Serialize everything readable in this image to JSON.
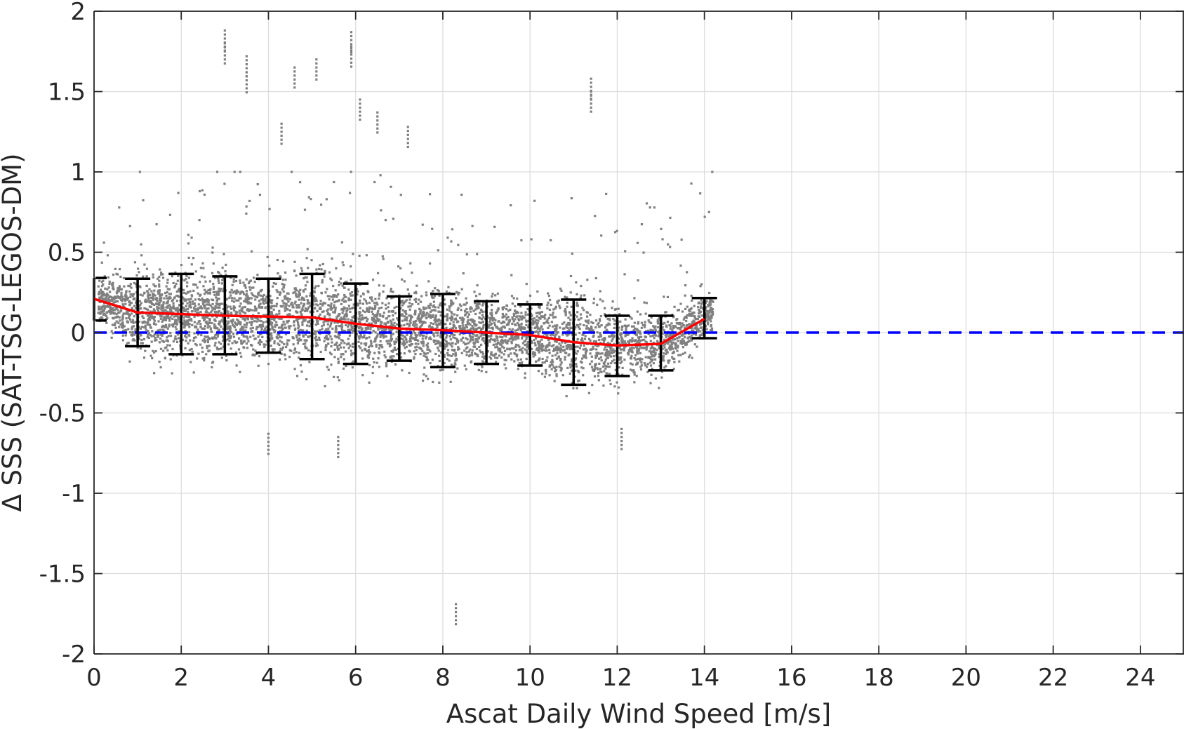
{
  "chart_data": {
    "type": "scatter",
    "title": "",
    "xlabel": "Ascat Daily Wind Speed [m/s]",
    "ylabel": "Δ SSS (SAT-TSG-LEGOS-DM)",
    "xlim": [
      0,
      25
    ],
    "ylim": [
      -2,
      2
    ],
    "grid": true,
    "x_ticks": [
      0,
      2,
      4,
      6,
      8,
      10,
      12,
      14,
      16,
      18,
      20,
      22,
      24
    ],
    "y_ticks": [
      -2,
      -1.5,
      -1,
      -0.5,
      0,
      0.5,
      1,
      1.5,
      2
    ],
    "x_tick_labels": [
      "0",
      "2",
      "4",
      "6",
      "8",
      "10",
      "12",
      "14",
      "16",
      "18",
      "20",
      "22",
      "24"
    ],
    "y_tick_labels": [
      "-2",
      "-1.5",
      "-1",
      "-0.5",
      "0",
      "0.5",
      "1",
      "1.5",
      "2"
    ],
    "scatter": {
      "color": "#808080",
      "x_range": [
        0.1,
        14.2
      ],
      "note_points": "dense cloud of individual matchups",
      "outliers": [
        {
          "x": 3.0,
          "y": 1.88
        },
        {
          "x": 3.0,
          "y": 1.8
        },
        {
          "x": 3.5,
          "y": 1.72
        },
        {
          "x": 3.5,
          "y": 1.62
        },
        {
          "x": 5.9,
          "y": 1.87
        },
        {
          "x": 5.9,
          "y": 1.78
        },
        {
          "x": 4.6,
          "y": 1.65
        },
        {
          "x": 5.1,
          "y": 1.7
        },
        {
          "x": 11.4,
          "y": 1.58
        },
        {
          "x": 11.4,
          "y": 1.5
        },
        {
          "x": 8.3,
          "y": -1.69
        },
        {
          "x": 12.1,
          "y": -0.6
        },
        {
          "x": 4.0,
          "y": -0.63
        },
        {
          "x": 5.6,
          "y": -0.65
        },
        {
          "x": 6.1,
          "y": 1.45
        },
        {
          "x": 4.3,
          "y": 1.3
        },
        {
          "x": 6.5,
          "y": 1.37
        },
        {
          "x": 7.2,
          "y": 1.28
        }
      ]
    },
    "series": [
      {
        "x": [
          0,
          1,
          2,
          3,
          4,
          5,
          6,
          7,
          8,
          9,
          10,
          11,
          12,
          13,
          14
        ],
        "values": [
          0.21,
          0.125,
          0.115,
          0.105,
          0.1,
          0.095,
          0.055,
          0.025,
          0.015,
          0.0,
          -0.015,
          -0.06,
          -0.08,
          -0.07,
          0.085
        ],
        "color": "#ff0000"
      }
    ],
    "error_bars": {
      "color": "#000000",
      "x": [
        0,
        1,
        2,
        3,
        4,
        5,
        6,
        7,
        8,
        9,
        10,
        11,
        12,
        13,
        14
      ],
      "upper": [
        0.34,
        0.335,
        0.365,
        0.35,
        0.335,
        0.365,
        0.305,
        0.225,
        0.24,
        0.195,
        0.175,
        0.205,
        0.105,
        0.105,
        0.215
      ],
      "lower": [
        0.075,
        -0.085,
        -0.135,
        -0.135,
        -0.125,
        -0.165,
        -0.195,
        -0.175,
        -0.215,
        -0.195,
        -0.205,
        -0.325,
        -0.27,
        -0.235,
        -0.035
      ]
    },
    "reference_line": {
      "y": 0,
      "style": "dashed",
      "color": "#0000ff"
    }
  }
}
